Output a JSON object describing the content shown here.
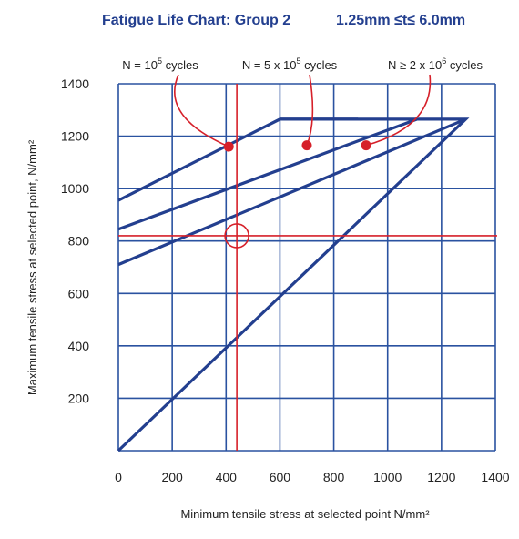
{
  "chart_data": {
    "type": "line",
    "title_left": "Fatigue Life Chart: Group 2",
    "title_right": "1.25mm ≤t≤ 6.0mm",
    "xlabel": "Minimum tensile stress at selected point N/mm²",
    "ylabel": "Maximum tensile stress at selected point, N/mm²",
    "xlim": [
      0,
      1400
    ],
    "ylim": [
      0,
      1400
    ],
    "x_ticks": [
      "0",
      "200",
      "400",
      "600",
      "800",
      "1000",
      "1200",
      "1400"
    ],
    "y_ticks": [
      "200",
      "400",
      "600",
      "800",
      "1000",
      "1200",
      "1400"
    ],
    "grid": true,
    "series": [
      {
        "name": "N = 10⁵ cycles",
        "points": [
          [
            0,
            955
          ],
          [
            600,
            1265
          ],
          [
            890,
            1265
          ]
        ]
      },
      {
        "name": "N = 5 x 10⁵ cycles",
        "points": [
          [
            0,
            845
          ],
          [
            1110,
            1265
          ]
        ]
      },
      {
        "name": "N ≥ 2 x 10⁶ cycles",
        "points": [
          [
            0,
            710
          ],
          [
            1290,
            1265
          ]
        ]
      },
      {
        "name": "",
        "points": [
          [
            0,
            0
          ],
          [
            1290,
            1265
          ],
          [
            600,
            1265
          ]
        ]
      }
    ],
    "annotations": [
      {
        "prefix": "N = 10",
        "sup": "5",
        "suffix": " cycles",
        "marker": [
          410,
          1160
        ]
      },
      {
        "prefix": "N = 5 x 10",
        "sup": "5",
        "suffix": " cycles",
        "marker": [
          700,
          1165
        ]
      },
      {
        "prefix": "N ≥ 2 x 10",
        "sup": "6",
        "suffix": " cycles",
        "marker": [
          920,
          1165
        ]
      }
    ],
    "reference": {
      "x": 440,
      "y": 820
    },
    "colors": {
      "grid": "#2a52a0",
      "series": "#233f8f",
      "title": "#233f8f",
      "accent": "#d6202a"
    }
  }
}
